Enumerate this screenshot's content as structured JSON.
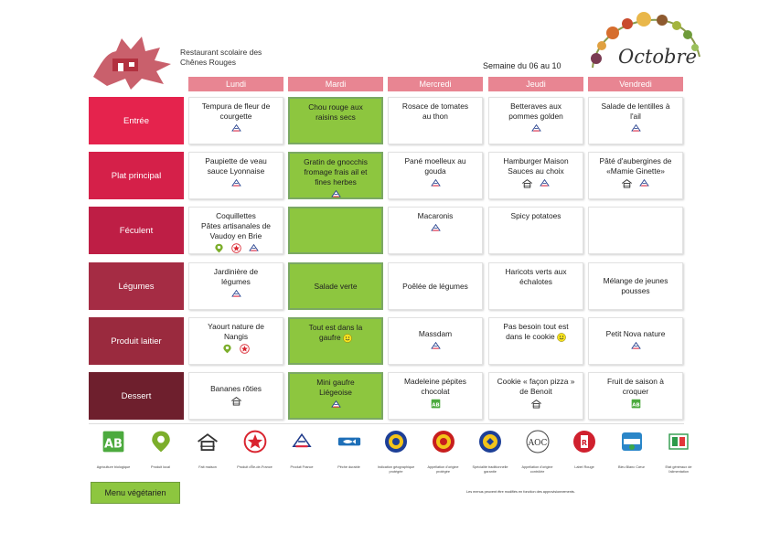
{
  "header": {
    "school_line1": "Restaurant scolaire des",
    "school_line2": "Chênes Rouges",
    "week": "Semaine du 06 au 10",
    "month": "Octobre"
  },
  "days": [
    "Lundi",
    "Mardi",
    "Mercredi",
    "Jeudi",
    "Vendredi"
  ],
  "rows": [
    {
      "label": "Entrée",
      "color": "#e5234d",
      "cells": [
        {
          "lines": [
            "Tempura de fleur de",
            "courgette"
          ],
          "icons": [
            "france-label-icon"
          ]
        },
        {
          "lines": [
            "Chou rouge aux",
            "raisins secs"
          ],
          "icons": [],
          "veg": true
        },
        {
          "lines": [
            "Rosace de tomates",
            "au thon"
          ],
          "icons": []
        },
        {
          "lines": [
            "Betteraves aux",
            "pommes golden"
          ],
          "icons": [
            "france-label-icon"
          ]
        },
        {
          "lines": [
            "Salade de lentilles à",
            "l'ail"
          ],
          "icons": [
            "france-label-icon"
          ]
        }
      ]
    },
    {
      "label": "Plat principal",
      "color": "#d52049",
      "cells": [
        {
          "lines": [
            "Paupiette de veau",
            "sauce Lyonnaise"
          ],
          "icons": [
            "france-label-icon"
          ]
        },
        {
          "lines": [
            "Gratin de gnocchis",
            "fromage frais ail et",
            "fines herbes"
          ],
          "icons": [
            "france-label-icon"
          ],
          "veg": true
        },
        {
          "lines": [
            "Pané moelleux au",
            "gouda"
          ],
          "icons": [
            "france-label-icon"
          ]
        },
        {
          "lines": [
            "Hamburger Maison",
            "Sauces au choix"
          ],
          "icons": [
            "house-icon",
            "france-label-icon"
          ]
        },
        {
          "lines": [
            "Pâté d'aubergines de",
            "«Mamie Ginette»"
          ],
          "icons": [
            "house-icon",
            "france-label-icon"
          ]
        }
      ]
    },
    {
      "label": "Féculent",
      "color": "#be1e45",
      "cells": [
        {
          "lines": [
            "Coquillettes",
            "Pâtes artisanales de",
            "Vaudoy en Brie"
          ],
          "icons": [
            "local-pin-icon",
            "star-icon",
            "france-label-icon"
          ]
        },
        {
          "lines": [],
          "icons": [],
          "veg": true
        },
        {
          "lines": [
            "Macaronis"
          ],
          "icons": [
            "france-label-icon"
          ]
        },
        {
          "lines": [
            "Spicy potatoes"
          ],
          "icons": []
        },
        {
          "lines": [],
          "icons": []
        }
      ]
    },
    {
      "label": "Légumes",
      "color": "#a52c44",
      "cells": [
        {
          "lines": [
            "Jardinière de",
            "légumes"
          ],
          "icons": [
            "france-label-icon"
          ]
        },
        {
          "lines": [
            "Salade verte"
          ],
          "icons": [],
          "veg": true,
          "vc": true
        },
        {
          "lines": [
            "Poêlée de légumes"
          ],
          "icons": [],
          "vc": true
        },
        {
          "lines": [
            "Haricots verts aux",
            "échalotes"
          ],
          "icons": []
        },
        {
          "lines": [
            "Mélange de jeunes",
            "pousses"
          ],
          "icons": [],
          "vc": true
        }
      ]
    },
    {
      "label": "Produit laitier",
      "color": "#9a2a3e",
      "cells": [
        {
          "lines": [
            "Yaourt nature de",
            "Nangis"
          ],
          "icons": [
            "local-pin-icon",
            "star-icon"
          ]
        },
        {
          "lines": [
            "Tout est dans la",
            "gaufre"
          ],
          "icons": [],
          "veg": true,
          "smile": true
        },
        {
          "lines": [
            "Massdam"
          ],
          "icons": [
            "france-label-icon"
          ],
          "vc": true
        },
        {
          "lines": [
            "Pas besoin tout est",
            "dans le cookie"
          ],
          "icons": [],
          "smile": true
        },
        {
          "lines": [
            "Petit Nova nature"
          ],
          "icons": [
            "france-label-icon"
          ],
          "vc": true
        }
      ]
    },
    {
      "label": "Dessert",
      "color": "#6e1f2d",
      "cells": [
        {
          "lines": [
            "Bananes rôties"
          ],
          "icons": [
            "house-icon"
          ],
          "vc": true
        },
        {
          "lines": [
            "Mini gaufre",
            "Liégeoise"
          ],
          "icons": [
            "france-label-icon"
          ],
          "veg": true
        },
        {
          "lines": [
            "Madeleine pépites",
            "chocolat"
          ],
          "icons": [
            "ab-icon"
          ]
        },
        {
          "lines": [
            "Cookie « façon pizza »",
            "de Benoit"
          ],
          "icons": [
            "house-icon"
          ]
        },
        {
          "lines": [
            "Fruit de saison à",
            "croquer"
          ],
          "icons": [
            "ab-icon"
          ]
        }
      ]
    }
  ],
  "legend": [
    {
      "icon": "ab-icon",
      "label": "Agriculture biologique"
    },
    {
      "icon": "local-pin-icon",
      "label": "Produit local"
    },
    {
      "icon": "house-icon",
      "label": "Fait maison"
    },
    {
      "icon": "star-icon",
      "label": "Produit d'Île-de-France"
    },
    {
      "icon": "france-label-icon",
      "label": "Produit France"
    },
    {
      "icon": "fish-icon",
      "label": "Pêche durable"
    },
    {
      "icon": "igp-icon",
      "label": "Indication géographique protégée"
    },
    {
      "icon": "aop-icon",
      "label": "Appellation d'origine protégée"
    },
    {
      "icon": "stg-icon",
      "label": "Spécialité traditionnelle garantie"
    },
    {
      "icon": "aoc-icon",
      "label": "Appellation d'origine contrôlée"
    },
    {
      "icon": "label-rouge-icon",
      "label": "Label Rouge"
    },
    {
      "icon": "bleu-blanc-coeur-icon",
      "label": "Bleu Blanc Cœur"
    },
    {
      "icon": "etats-generaux-icon",
      "label": "Etat généraux de l'alimentation"
    }
  ],
  "veg_label": "Menu végétarien",
  "note": "Les menus peuvent être modifiés en fonction des approvisionnements."
}
